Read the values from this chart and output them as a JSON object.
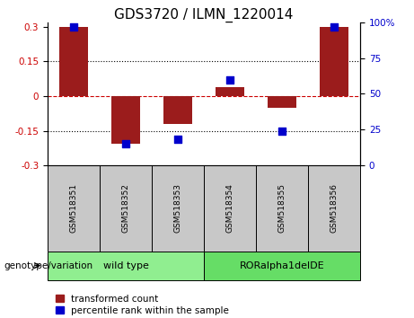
{
  "title": "GDS3720 / ILMN_1220014",
  "samples": [
    "GSM518351",
    "GSM518352",
    "GSM518353",
    "GSM518354",
    "GSM518355",
    "GSM518356"
  ],
  "bar_values": [
    0.3,
    -0.205,
    -0.12,
    0.04,
    -0.05,
    0.3
  ],
  "percentile_values": [
    97,
    15,
    18,
    60,
    24,
    97
  ],
  "bar_color": "#9B1C1C",
  "dot_color": "#0000CC",
  "ylim_left": [
    -0.3,
    0.32
  ],
  "ylim_right": [
    0,
    100
  ],
  "yticks_left": [
    -0.3,
    -0.15,
    0,
    0.15,
    0.3
  ],
  "yticks_right": [
    0,
    25,
    50,
    75,
    100
  ],
  "groups": [
    {
      "label": "wild type",
      "indices": [
        0,
        1,
        2
      ],
      "color": "#90EE90"
    },
    {
      "label": "RORalpha1delDE",
      "indices": [
        3,
        4,
        5
      ],
      "color": "#66DD66"
    }
  ],
  "group_label": "genotype/variation",
  "legend_bar_label": "transformed count",
  "legend_dot_label": "percentile rank within the sample",
  "hline_color": "#CC0000",
  "grid_color": "#000000",
  "background_color": "#FFFFFF",
  "sample_box_color": "#C8C8C8",
  "title_fontsize": 11,
  "tick_fontsize": 7.5,
  "label_fontsize": 8
}
